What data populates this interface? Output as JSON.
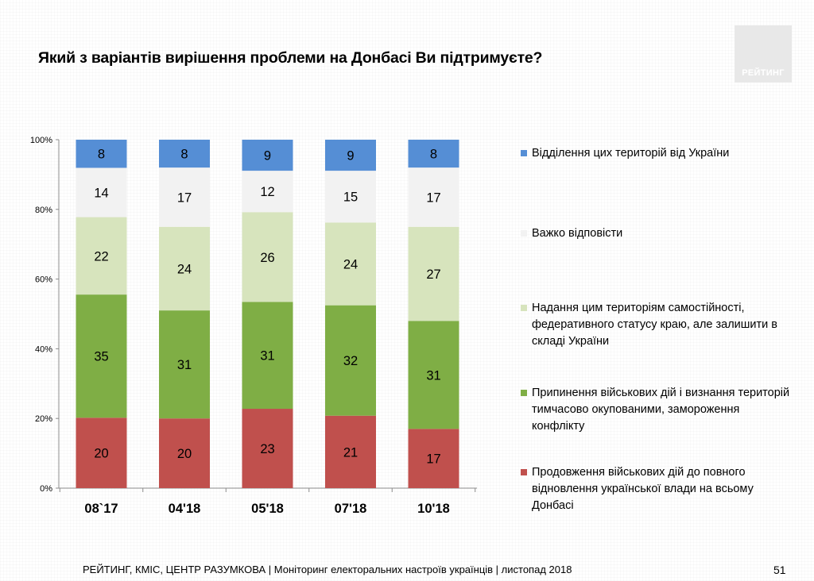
{
  "title": "Який з варіантів вирішення проблеми на Донбасі Ви підтримуєте?",
  "logo": {
    "text": "РЕЙТИНГ"
  },
  "footer": {
    "sources": "РЕЙТИНГ, КМІС, ЦЕНТР РАЗУМКОВА |",
    "description": "Моніторинг електоральних настроїв українців | листопад 2018"
  },
  "page_number": "51",
  "chart_data": {
    "type": "bar",
    "stacked": true,
    "percent_stacked": true,
    "title": "Який з варіантів вирішення проблеми на Донбасі Ви підтримуєте?",
    "xlabel": "",
    "ylabel": "",
    "ylim": [
      0,
      100
    ],
    "y_ticks": [
      "0%",
      "20%",
      "40%",
      "60%",
      "80%",
      "100%"
    ],
    "categories": [
      "08`17",
      "04'18",
      "05'18",
      "07'18",
      "10'18"
    ],
    "series": [
      {
        "name": "Продовження військових дій до повного відновлення української влади на всьому Донбасі",
        "color": "#c0504d",
        "values": [
          20,
          20,
          23,
          21,
          17
        ]
      },
      {
        "name": "Припинення військових дій і визнання територій тимчасово окупованими, замороження конфлікту",
        "color": "#7fae45",
        "values": [
          35,
          31,
          31,
          32,
          31
        ]
      },
      {
        "name": "Надання цим територіям самостійності, федеративного статусу краю, але залишити в складі України",
        "color": "#d7e4bd",
        "values": [
          22,
          24,
          26,
          24,
          27
        ]
      },
      {
        "name": "Важко відповісти",
        "color": "#f2f2f2",
        "values": [
          14,
          17,
          12,
          15,
          17
        ]
      },
      {
        "name": "Відділення цих територій від України",
        "color": "#558ed5",
        "values": [
          8,
          8,
          9,
          9,
          8
        ]
      }
    ],
    "legend": [
      {
        "label": "Відділення цих територій від України",
        "color": "#558ed5"
      },
      {
        "label": "Важко відповісти",
        "color": "#f2f2f2"
      },
      {
        "label": "Надання цим територіям самостійності, федеративного статусу краю, але залишити в складі України",
        "color": "#d7e4bd"
      },
      {
        "label": "Припинення військових дій і визнання територій тимчасово окупованими, замороження конфлікту",
        "color": "#7fae45"
      },
      {
        "label": "Продовження військових дій до повного відновлення української влади на всьому Донбасі",
        "color": "#c0504d"
      }
    ],
    "legend_position": "right",
    "grid": false
  }
}
